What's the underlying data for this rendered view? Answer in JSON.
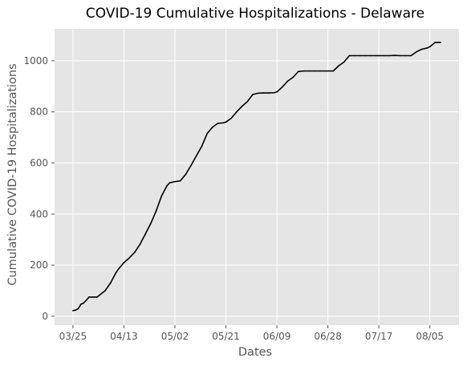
{
  "chart_data": {
    "type": "line",
    "title": "COVID-19 Cumulative Hospitalizations - Delaware",
    "xlabel": "Dates",
    "ylabel": "Cumulative COVID-19 Hospitalizations",
    "x_tick_labels": [
      "03/25",
      "04/13",
      "05/02",
      "05/21",
      "06/09",
      "06/28",
      "07/17",
      "08/05"
    ],
    "y_ticks": [
      0,
      200,
      400,
      600,
      800,
      1000
    ],
    "ylim": [
      -35,
      1125
    ],
    "grid": true,
    "colors": {
      "plot_background": "#e5e5e5",
      "grid": "#ffffff",
      "line": "#000000"
    },
    "series": [
      {
        "x": [
          "03/25",
          "03/26",
          "03/27",
          "03/28",
          "03/29",
          "03/30",
          "03/31",
          "04/02",
          "04/03",
          "04/06",
          "04/08",
          "04/10",
          "04/11",
          "04/13",
          "04/15",
          "04/17",
          "04/19",
          "04/21",
          "04/23",
          "04/25",
          "04/27",
          "04/29",
          "04/30",
          "05/02",
          "05/04",
          "05/06",
          "05/08",
          "05/10",
          "05/12",
          "05/14",
          "05/16",
          "05/18",
          "05/20",
          "05/21",
          "05/23",
          "05/25",
          "05/27",
          "05/29",
          "05/31",
          "06/02",
          "06/04",
          "06/06",
          "06/08",
          "06/09",
          "06/11",
          "06/13",
          "06/15",
          "06/17",
          "06/19",
          "06/21",
          "06/23",
          "06/25",
          "06/27",
          "06/28",
          "06/30",
          "07/02",
          "07/04",
          "07/06",
          "07/08",
          "07/10",
          "07/12",
          "07/14",
          "07/16",
          "07/17",
          "07/19",
          "07/21",
          "07/23",
          "07/25",
          "07/27",
          "07/29",
          "07/31",
          "08/02",
          "08/04",
          "08/05",
          "08/07",
          "08/09"
        ],
        "y": [
          22,
          24,
          30,
          47,
          52,
          63,
          75,
          75,
          75,
          100,
          130,
          170,
          185,
          210,
          228,
          250,
          282,
          322,
          363,
          412,
          470,
          510,
          522,
          527,
          530,
          555,
          590,
          628,
          665,
          715,
          740,
          755,
          757,
          760,
          775,
          800,
          822,
          840,
          868,
          873,
          874,
          874,
          875,
          878,
          897,
          920,
          935,
          958,
          960,
          960,
          960,
          960,
          960,
          960,
          960,
          980,
          995,
          1020,
          1020,
          1020,
          1020,
          1020,
          1020,
          1020,
          1020,
          1020,
          1021,
          1020,
          1020,
          1020,
          1035,
          1045,
          1050,
          1055,
          1072,
          1072
        ]
      }
    ]
  }
}
